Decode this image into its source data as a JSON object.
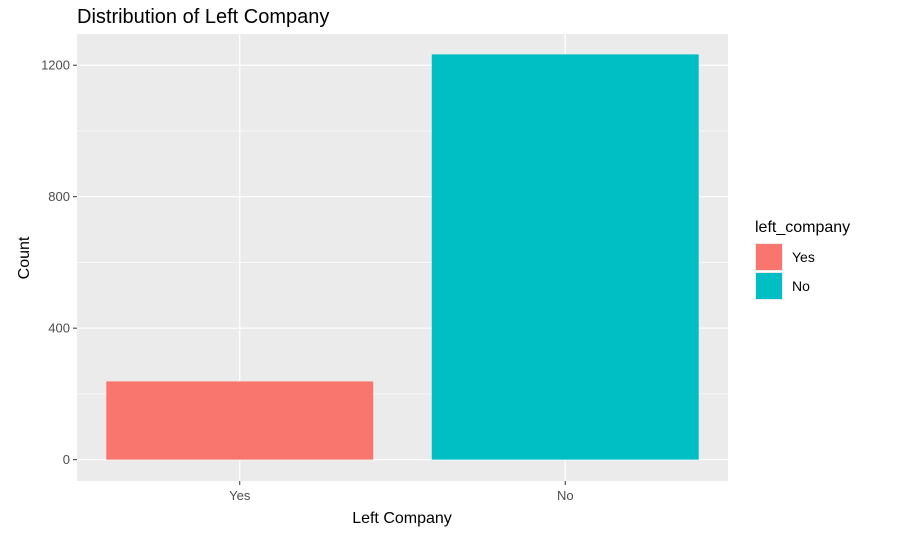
{
  "chart_data": {
    "type": "bar",
    "title": "Distribution of Left Company",
    "xlabel": "Left Company",
    "ylabel": "Count",
    "categories": [
      "Yes",
      "No"
    ],
    "values": [
      238,
      1233
    ],
    "ylim": [
      -65,
      1295
    ],
    "yticks": [
      0,
      400,
      800,
      1200
    ],
    "grid": true,
    "colors": [
      "#F8766D",
      "#00BFC4"
    ],
    "panel_background": "#EBEBEB",
    "legend": {
      "title": "left_company",
      "position": "right",
      "entries": [
        {
          "label": "Yes",
          "color": "#F8766D"
        },
        {
          "label": "No",
          "color": "#00BFC4"
        }
      ]
    }
  }
}
